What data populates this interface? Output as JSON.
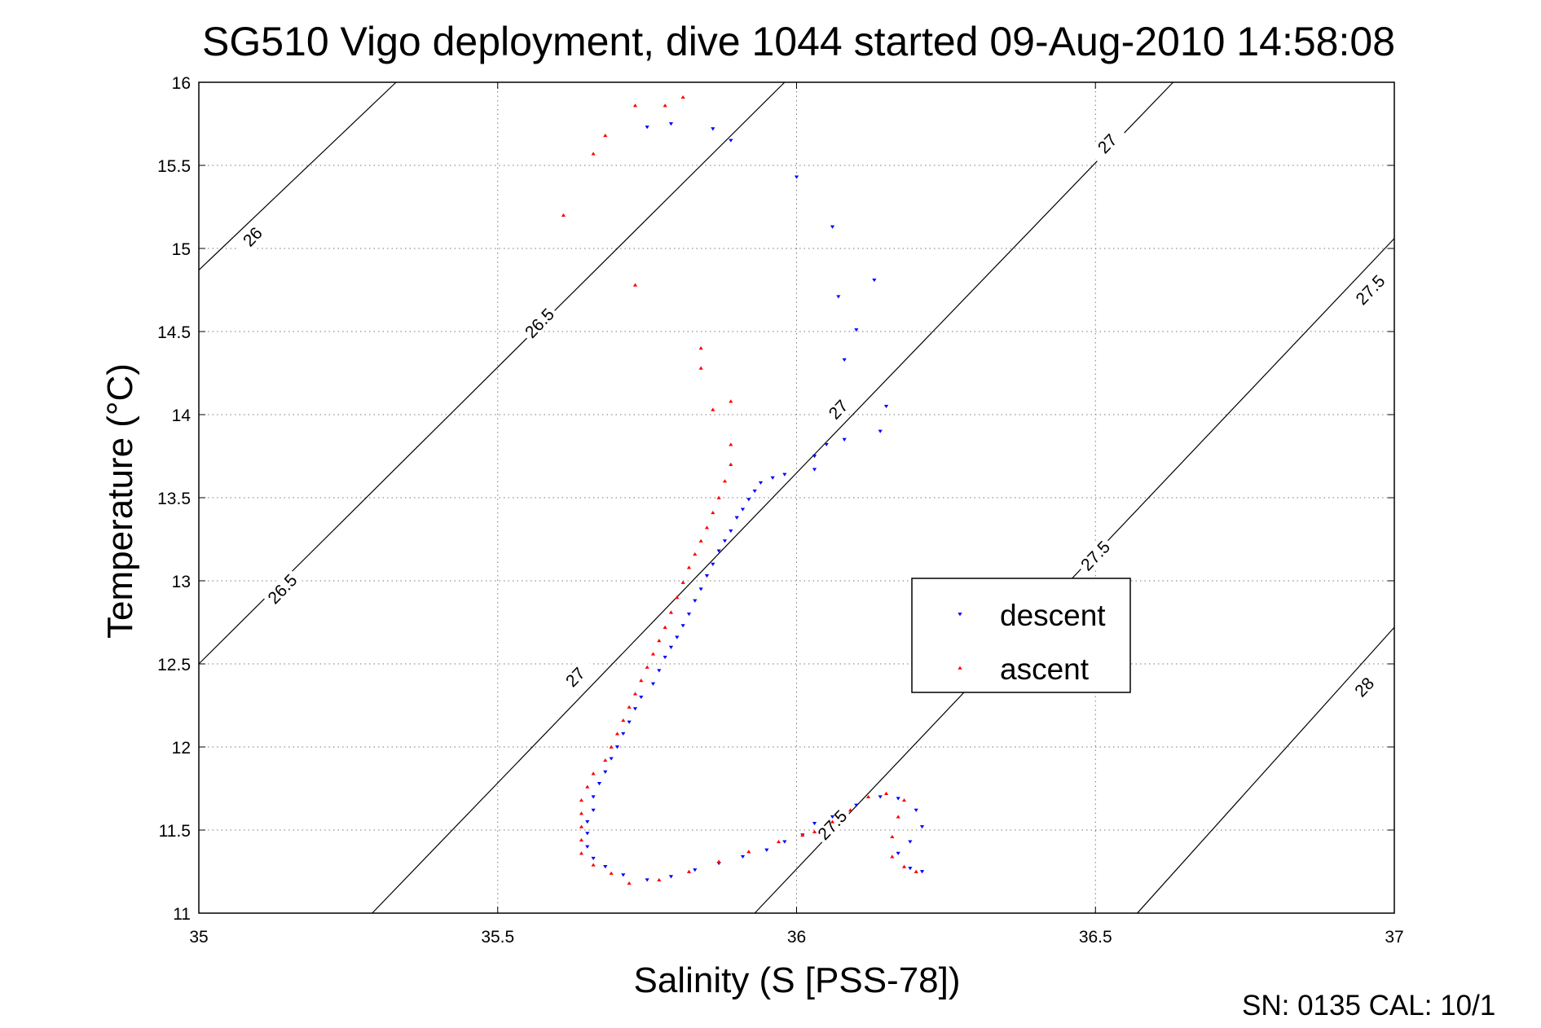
{
  "title": "SG510 Vigo deployment, dive 1044 started 09-Aug-2010 14:58:08",
  "footer": "SN: 0135  CAL: 10/1",
  "chart_data": {
    "type": "scatter",
    "xlabel": "Salinity (S [PSS-78])",
    "ylabel": "Temperature (°C)",
    "xlim": [
      35,
      37
    ],
    "ylim": [
      11,
      16
    ],
    "xticks": [
      "35",
      "35.5",
      "36",
      "36.5",
      "37"
    ],
    "yticks": [
      "11",
      "11.5",
      "12",
      "12.5",
      "13",
      "13.5",
      "14",
      "14.5",
      "15",
      "15.5",
      "16"
    ],
    "grid": true,
    "legend_position": "center-right",
    "density_contours": [
      {
        "level": 26.0,
        "from": [
          35.0,
          14.87
        ],
        "to": [
          35.33,
          16.0
        ]
      },
      {
        "level": 26.5,
        "from": [
          35.0,
          12.5
        ],
        "to": [
          35.98,
          16.0
        ]
      },
      {
        "level": 27.0,
        "from": [
          35.29,
          11.0
        ],
        "to": [
          36.63,
          16.0
        ]
      },
      {
        "level": 27.5,
        "from": [
          35.93,
          11.0
        ],
        "to": [
          37.0,
          15.06
        ]
      },
      {
        "level": 28.0,
        "from": [
          36.57,
          11.0
        ],
        "to": [
          37.0,
          12.72
        ]
      }
    ],
    "contour_labels": [
      {
        "text": "26",
        "s": 35.09,
        "t": 15.07
      },
      {
        "text": "26.5",
        "s": 35.57,
        "t": 14.55
      },
      {
        "text": "26.5",
        "s": 35.14,
        "t": 12.95
      },
      {
        "text": "27",
        "s": 36.52,
        "t": 15.63
      },
      {
        "text": "27",
        "s": 36.07,
        "t": 14.03
      },
      {
        "text": "27",
        "s": 35.63,
        "t": 12.42
      },
      {
        "text": "27.5",
        "s": 36.96,
        "t": 14.75
      },
      {
        "text": "27.5",
        "s": 36.5,
        "t": 13.15
      },
      {
        "text": "27.5",
        "s": 36.06,
        "t": 11.53
      },
      {
        "text": "28",
        "s": 36.95,
        "t": 12.36
      }
    ],
    "series": [
      {
        "name": "descent",
        "color": "#0000ff",
        "marker": "triangle-down",
        "points": [
          [
            35.75,
            15.73
          ],
          [
            35.79,
            15.75
          ],
          [
            35.86,
            15.72
          ],
          [
            35.89,
            15.65
          ],
          [
            36.0,
            15.43
          ],
          [
            36.06,
            15.13
          ],
          [
            36.13,
            14.81
          ],
          [
            36.07,
            14.71
          ],
          [
            36.1,
            14.51
          ],
          [
            36.08,
            14.33
          ],
          [
            36.15,
            14.05
          ],
          [
            36.14,
            13.9
          ],
          [
            36.08,
            13.85
          ],
          [
            36.05,
            13.82
          ],
          [
            36.03,
            13.75
          ],
          [
            36.03,
            13.67
          ],
          [
            35.98,
            13.64
          ],
          [
            35.96,
            13.62
          ],
          [
            35.94,
            13.59
          ],
          [
            35.93,
            13.54
          ],
          [
            35.92,
            13.49
          ],
          [
            35.91,
            13.43
          ],
          [
            35.9,
            13.38
          ],
          [
            35.89,
            13.3
          ],
          [
            35.88,
            13.24
          ],
          [
            35.87,
            13.18
          ],
          [
            35.86,
            13.1
          ],
          [
            35.85,
            13.03
          ],
          [
            35.84,
            12.95
          ],
          [
            35.83,
            12.88
          ],
          [
            35.82,
            12.8
          ],
          [
            35.81,
            12.73
          ],
          [
            35.8,
            12.66
          ],
          [
            35.79,
            12.6
          ],
          [
            35.78,
            12.54
          ],
          [
            35.77,
            12.46
          ],
          [
            35.76,
            12.38
          ],
          [
            35.74,
            12.3
          ],
          [
            35.73,
            12.23
          ],
          [
            35.72,
            12.15
          ],
          [
            35.71,
            12.08
          ],
          [
            35.7,
            12.0
          ],
          [
            35.69,
            11.93
          ],
          [
            35.68,
            11.85
          ],
          [
            35.67,
            11.78
          ],
          [
            35.66,
            11.7
          ],
          [
            35.66,
            11.62
          ],
          [
            35.65,
            11.55
          ],
          [
            35.65,
            11.48
          ],
          [
            35.65,
            11.4
          ],
          [
            35.66,
            11.33
          ],
          [
            35.68,
            11.28
          ],
          [
            35.71,
            11.23
          ],
          [
            35.75,
            11.2
          ],
          [
            35.79,
            11.22
          ],
          [
            35.83,
            11.26
          ],
          [
            35.87,
            11.3
          ],
          [
            35.91,
            11.34
          ],
          [
            35.95,
            11.38
          ],
          [
            35.98,
            11.43
          ],
          [
            36.01,
            11.47
          ],
          [
            36.03,
            11.54
          ],
          [
            36.06,
            11.58
          ],
          [
            36.1,
            11.65
          ],
          [
            36.14,
            11.7
          ],
          [
            36.17,
            11.69
          ],
          [
            36.2,
            11.62
          ],
          [
            36.21,
            11.52
          ],
          [
            36.19,
            11.43
          ],
          [
            36.17,
            11.36
          ],
          [
            36.19,
            11.27
          ],
          [
            36.21,
            11.25
          ]
        ]
      },
      {
        "name": "ascent",
        "color": "#ff0000",
        "marker": "triangle-up",
        "points": [
          [
            35.73,
            15.86
          ],
          [
            35.78,
            15.86
          ],
          [
            35.81,
            15.91
          ],
          [
            35.68,
            15.68
          ],
          [
            35.66,
            15.57
          ],
          [
            35.61,
            15.2
          ],
          [
            35.73,
            14.78
          ],
          [
            35.84,
            14.4
          ],
          [
            35.84,
            14.28
          ],
          [
            35.89,
            14.08
          ],
          [
            35.86,
            14.03
          ],
          [
            35.89,
            13.82
          ],
          [
            35.89,
            13.7
          ],
          [
            35.88,
            13.6
          ],
          [
            35.87,
            13.5
          ],
          [
            35.86,
            13.41
          ],
          [
            35.85,
            13.32
          ],
          [
            35.84,
            13.24
          ],
          [
            35.83,
            13.16
          ],
          [
            35.82,
            13.08
          ],
          [
            35.81,
            12.99
          ],
          [
            35.8,
            12.9
          ],
          [
            35.79,
            12.81
          ],
          [
            35.78,
            12.72
          ],
          [
            35.77,
            12.64
          ],
          [
            35.76,
            12.56
          ],
          [
            35.75,
            12.48
          ],
          [
            35.74,
            12.4
          ],
          [
            35.73,
            12.32
          ],
          [
            35.72,
            12.24
          ],
          [
            35.71,
            12.16
          ],
          [
            35.7,
            12.08
          ],
          [
            35.69,
            12.0
          ],
          [
            35.68,
            11.92
          ],
          [
            35.66,
            11.84
          ],
          [
            35.65,
            11.76
          ],
          [
            35.64,
            11.68
          ],
          [
            35.64,
            11.6
          ],
          [
            35.64,
            11.52
          ],
          [
            35.64,
            11.44
          ],
          [
            35.64,
            11.36
          ],
          [
            35.66,
            11.29
          ],
          [
            35.69,
            11.24
          ],
          [
            35.72,
            11.18
          ],
          [
            35.77,
            11.2
          ],
          [
            35.82,
            11.25
          ],
          [
            35.87,
            11.31
          ],
          [
            35.92,
            11.37
          ],
          [
            35.97,
            11.43
          ],
          [
            36.01,
            11.47
          ],
          [
            36.03,
            11.49
          ],
          [
            36.06,
            11.55
          ],
          [
            36.09,
            11.62
          ],
          [
            36.12,
            11.7
          ],
          [
            36.15,
            11.72
          ],
          [
            36.18,
            11.68
          ],
          [
            36.17,
            11.58
          ],
          [
            36.16,
            11.46
          ],
          [
            36.16,
            11.34
          ],
          [
            36.18,
            11.28
          ],
          [
            36.2,
            11.25
          ]
        ]
      }
    ]
  }
}
